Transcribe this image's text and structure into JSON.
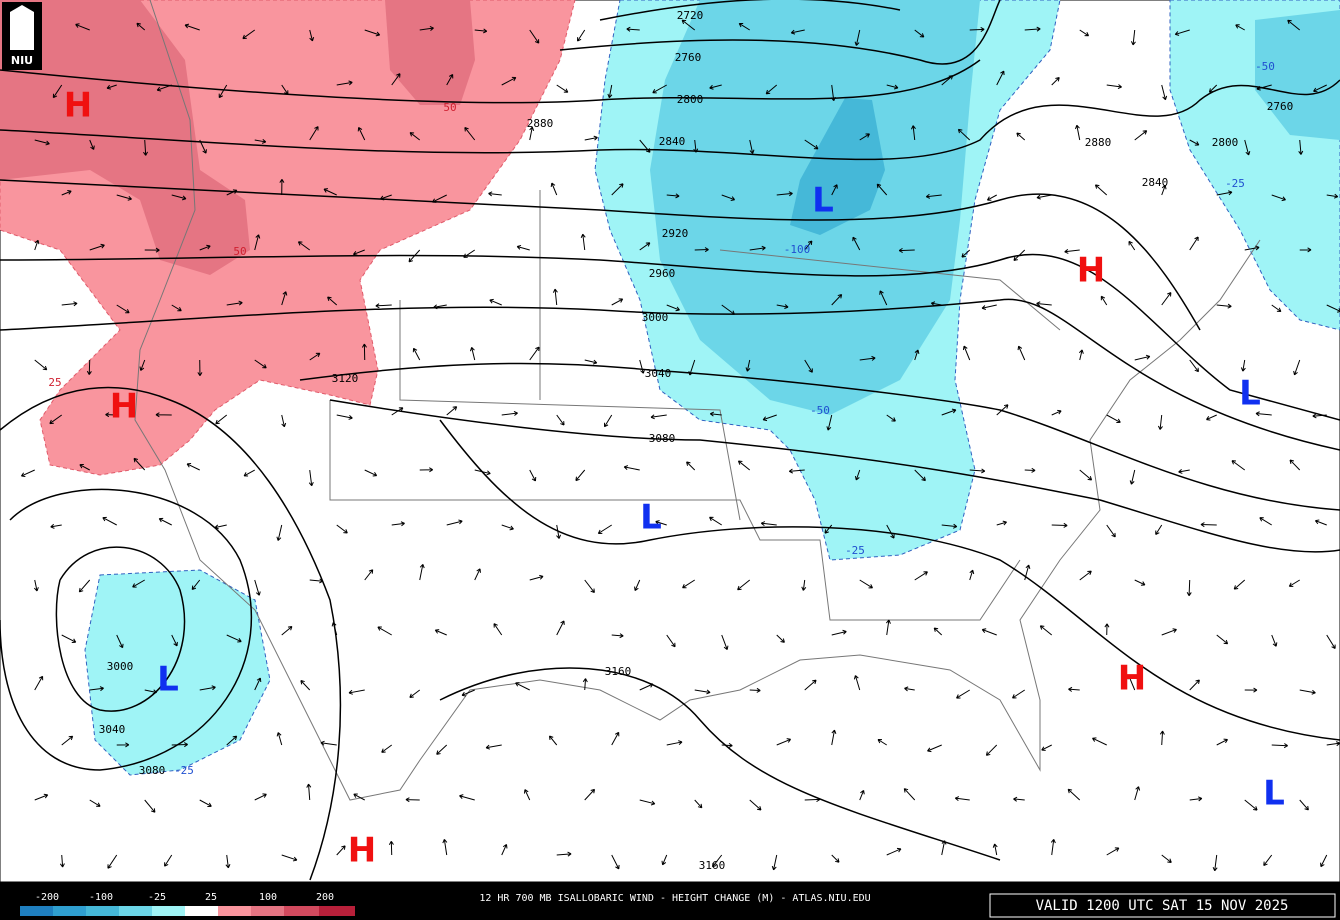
{
  "logo": "NIU",
  "contour_labels": [
    "2720",
    "2760",
    "2800",
    "2840",
    "2880",
    "2920",
    "2960",
    "3000",
    "3040",
    "3080",
    "3120",
    "3160",
    "3160",
    "2880",
    "2840",
    "2800",
    "2760",
    "3000",
    "3040",
    "3080"
  ],
  "change_labels": [
    "-50",
    "-25",
    "-100",
    "-50",
    "-25",
    "-25",
    "50",
    "50",
    "25"
  ],
  "pressure_centers": [
    "H",
    "H",
    "H",
    "H",
    "H",
    "L",
    "L",
    "L",
    "L",
    "L"
  ],
  "legend_labels": [
    "-200",
    "-100",
    "-25",
    "25",
    "100",
    "200"
  ],
  "footer_title": "12 HR 700 MB ISALLOBARIC WIND - HEIGHT CHANGE (M) - ATLAS.NIU.EDU",
  "valid_time": "VALID 1200 UTC SAT 15 NOV 2025"
}
